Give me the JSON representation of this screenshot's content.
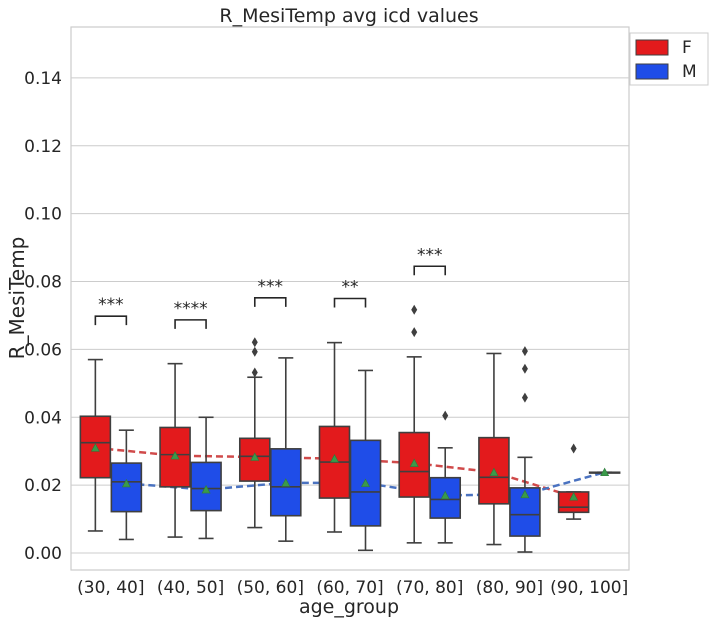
{
  "chart_data": {
    "type": "box",
    "title": "R_MesiTemp avg icd values",
    "xlabel": "age_group",
    "ylabel": "R_MesiTemp",
    "ylim": [
      -0.005,
      0.155
    ],
    "yticks": [
      0.0,
      0.02,
      0.04,
      0.06,
      0.08,
      0.1,
      0.12,
      0.14
    ],
    "ytick_labels": [
      "0.00",
      "0.02",
      "0.04",
      "0.06",
      "0.08",
      "0.10",
      "0.12",
      "0.14"
    ],
    "grid": "horizontal",
    "legend_position": "top-right",
    "categories": [
      "(30, 40]",
      "(40, 50]",
      "(50, 60]",
      "(60, 70]",
      "(70, 80]",
      "(80, 90]",
      "(90, 100]"
    ],
    "series": [
      {
        "name": "F",
        "color": "#e31a1c",
        "mean_line_color": "#d04a4a",
        "boxes": [
          {
            "whisker_low": 0.0065,
            "q1": 0.0222,
            "median": 0.0325,
            "q3": 0.0403,
            "whisker_high": 0.057,
            "mean": 0.031,
            "outliers": []
          },
          {
            "whisker_low": 0.0047,
            "q1": 0.0195,
            "median": 0.029,
            "q3": 0.037,
            "whisker_high": 0.0558,
            "mean": 0.0287,
            "outliers": []
          },
          {
            "whisker_low": 0.0075,
            "q1": 0.0212,
            "median": 0.0285,
            "q3": 0.0338,
            "whisker_high": 0.0518,
            "mean": 0.0283,
            "outliers": [
              0.0532,
              0.0593,
              0.0621
            ]
          },
          {
            "whisker_low": 0.0062,
            "q1": 0.0162,
            "median": 0.0268,
            "q3": 0.0373,
            "whisker_high": 0.062,
            "mean": 0.0278,
            "outliers": []
          },
          {
            "whisker_low": 0.003,
            "q1": 0.0165,
            "median": 0.024,
            "q3": 0.0355,
            "whisker_high": 0.0578,
            "mean": 0.0265,
            "outliers": [
              0.0651,
              0.0717
            ]
          },
          {
            "whisker_low": 0.0025,
            "q1": 0.0145,
            "median": 0.0223,
            "q3": 0.034,
            "whisker_high": 0.0588,
            "mean": 0.0238,
            "outliers": []
          },
          {
            "whisker_low": 0.01,
            "q1": 0.012,
            "median": 0.0135,
            "q3": 0.018,
            "whisker_high": 0.018,
            "mean": 0.0166,
            "outliers": [
              0.0308
            ]
          }
        ]
      },
      {
        "name": "M",
        "color": "#1f4de8",
        "mean_line_color": "#4a72c0",
        "boxes": [
          {
            "whisker_low": 0.004,
            "q1": 0.0122,
            "median": 0.021,
            "q3": 0.0265,
            "whisker_high": 0.0362,
            "mean": 0.0205,
            "outliers": []
          },
          {
            "whisker_low": 0.0043,
            "q1": 0.0125,
            "median": 0.019,
            "q3": 0.0267,
            "whisker_high": 0.04,
            "mean": 0.0187,
            "outliers": []
          },
          {
            "whisker_low": 0.0035,
            "q1": 0.011,
            "median": 0.0195,
            "q3": 0.0307,
            "whisker_high": 0.0575,
            "mean": 0.0207,
            "outliers": []
          },
          {
            "whisker_low": 0.0008,
            "q1": 0.008,
            "median": 0.018,
            "q3": 0.0332,
            "whisker_high": 0.0538,
            "mean": 0.0206,
            "outliers": []
          },
          {
            "whisker_low": 0.003,
            "q1": 0.0103,
            "median": 0.0158,
            "q3": 0.0222,
            "whisker_high": 0.031,
            "mean": 0.017,
            "outliers": [
              0.0405
            ]
          },
          {
            "whisker_low": 0.0003,
            "q1": 0.005,
            "median": 0.0113,
            "q3": 0.0192,
            "whisker_high": 0.0282,
            "mean": 0.0173,
            "outliers": [
              0.0458,
              0.0543,
              0.0595
            ]
          },
          {
            "whisker_low": 0.0238,
            "q1": 0.0238,
            "median": 0.0238,
            "q3": 0.0238,
            "whisker_high": 0.0238,
            "mean": 0.0238,
            "outliers": []
          }
        ]
      }
    ],
    "significance": [
      {
        "category": "(30, 40]",
        "label": "***",
        "y": 0.0698
      },
      {
        "category": "(40, 50]",
        "label": "****",
        "y": 0.0687
      },
      {
        "category": "(50, 60]",
        "label": "***",
        "y": 0.0752
      },
      {
        "category": "(60, 70]",
        "label": "**",
        "y": 0.075
      },
      {
        "category": "(70, 80]",
        "label": "***",
        "y": 0.0845
      }
    ]
  }
}
